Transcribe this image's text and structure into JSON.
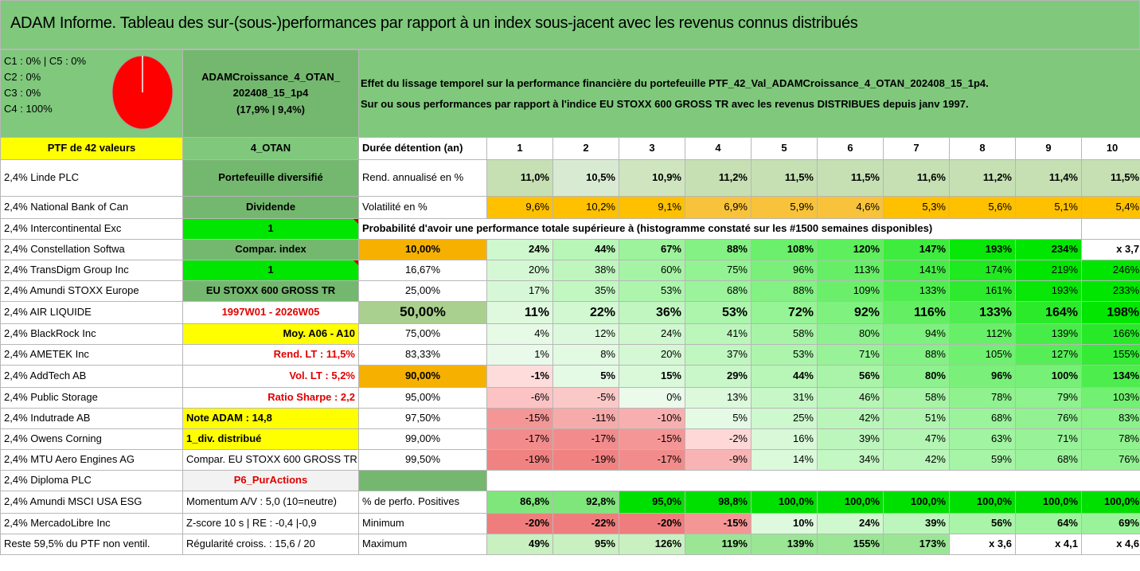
{
  "title": "ADAM Informe. Tableau des sur-(sous-)performances par rapport à un index sous-jacent avec les revenus connus distribués",
  "class_info": [
    "C1 : 0% | C5 : 0%",
    "C2 : 0%",
    "C3 : 0%",
    "C4 : 100%"
  ],
  "fund_box": {
    "line1": "ADAMCroissance_4_OTAN_",
    "line2": "202408_15_1p4",
    "line3": "(17,9% | 9,4%)"
  },
  "effect": {
    "line1": "Effet du lissage temporel sur la performance financière du portefeuille PTF_42_Val_ADAMCroissance_4_OTAN_202408_15_1p4.",
    "line2": "Sur ou sous performances par rapport à l'indice EU STOXX 600 GROSS TR avec les revenus DISTRIBUES depuis janv 1997."
  },
  "ptf_label": "PTF de 42 valeurs",
  "otan_label": "4_OTAN",
  "duration_label": "Durée détention (an)",
  "years": [
    "1",
    "2",
    "3",
    "4",
    "5",
    "6",
    "7",
    "8",
    "9",
    "10"
  ],
  "holdings": [
    "2,4% Linde PLC",
    "2,4% National Bank of Can",
    "2,4% Intercontinental Exc",
    "2,4% Constellation Softwa",
    "2,4% TransDigm Group Inc",
    "2,4% Amundi STOXX Europe",
    "2,4% AIR LIQUIDE",
    "2,4% BlackRock Inc",
    "2,4% AMETEK Inc",
    "2,4% AddTech AB",
    "2,4% Public Storage",
    "2,4% Indutrade AB",
    "2,4% Owens Corning",
    "2,4% MTU Aero Engines AG",
    "2,4% Diploma PLC",
    "2,4% Amundi MSCI USA ESG",
    "2,4% MercadoLibre Inc",
    "Reste 59,5% du PTF non ventil."
  ],
  "col2": [
    "Portefeuille diversifié",
    "Dividende",
    "1",
    "Compar. index",
    "1",
    "EU STOXX 600 GROSS TR",
    "1997W01 - 2026W05",
    "Moy. A06 - A10",
    "Rend. LT : 11,5%",
    "Vol. LT : 5,2%",
    "Ratio Sharpe : 2,2",
    "Note ADAM : 14,8",
    "1_div. distribué",
    "Compar. EU STOXX 600 GROSS TR",
    "P6_PurActions",
    "Momentum A/V : 5,0 (10=neutre)",
    "Z-score 10 s | RE : -0,4 |-0,9",
    "Régularité croiss. : 15,6 / 20"
  ],
  "rend": {
    "label": "Rend. annualisé en %",
    "values": [
      "11,0%",
      "10,5%",
      "10,9%",
      "11,2%",
      "11,5%",
      "11,5%",
      "11,6%",
      "11,2%",
      "11,4%",
      "11,5%"
    ]
  },
  "vol": {
    "label": "Volatilité en %",
    "values": [
      "9,6%",
      "10,2%",
      "9,1%",
      "6,9%",
      "5,9%",
      "4,6%",
      "5,3%",
      "5,6%",
      "5,1%",
      "5,4%"
    ]
  },
  "prob_title": "Probabilité d'avoir une performance totale supérieure à (histogramme constaté sur les #1500 semaines disponibles)",
  "prob_rows": [
    {
      "p": "10,00%",
      "v": [
        "24%",
        "44%",
        "67%",
        "88%",
        "108%",
        "120%",
        "147%",
        "193%",
        "234%",
        "x 3,7"
      ]
    },
    {
      "p": "16,67%",
      "v": [
        "20%",
        "38%",
        "60%",
        "75%",
        "96%",
        "113%",
        "141%",
        "174%",
        "219%",
        "246%"
      ]
    },
    {
      "p": "25,00%",
      "v": [
        "17%",
        "35%",
        "53%",
        "68%",
        "88%",
        "109%",
        "133%",
        "161%",
        "193%",
        "233%"
      ]
    },
    {
      "p": "50,00%",
      "v": [
        "11%",
        "22%",
        "36%",
        "53%",
        "72%",
        "92%",
        "116%",
        "133%",
        "164%",
        "198%"
      ]
    },
    {
      "p": "75,00%",
      "v": [
        "4%",
        "12%",
        "24%",
        "41%",
        "58%",
        "80%",
        "94%",
        "112%",
        "139%",
        "166%"
      ]
    },
    {
      "p": "83,33%",
      "v": [
        "1%",
        "8%",
        "20%",
        "37%",
        "53%",
        "71%",
        "88%",
        "105%",
        "127%",
        "155%"
      ]
    },
    {
      "p": "90,00%",
      "v": [
        "-1%",
        "5%",
        "15%",
        "29%",
        "44%",
        "56%",
        "80%",
        "96%",
        "100%",
        "134%"
      ]
    },
    {
      "p": "95,00%",
      "v": [
        "-6%",
        "-5%",
        "0%",
        "13%",
        "31%",
        "46%",
        "58%",
        "78%",
        "79%",
        "103%"
      ]
    },
    {
      "p": "97,50%",
      "v": [
        "-15%",
        "-11%",
        "-10%",
        "5%",
        "25%",
        "42%",
        "51%",
        "68%",
        "76%",
        "83%"
      ]
    },
    {
      "p": "99,00%",
      "v": [
        "-17%",
        "-17%",
        "-15%",
        "-2%",
        "16%",
        "39%",
        "47%",
        "63%",
        "71%",
        "78%"
      ]
    },
    {
      "p": "99,50%",
      "v": [
        "-19%",
        "-19%",
        "-17%",
        "-9%",
        "14%",
        "34%",
        "42%",
        "59%",
        "68%",
        "76%"
      ]
    }
  ],
  "pos": {
    "label": "% de perfo. Positives",
    "values": [
      "86,8%",
      "92,8%",
      "95,0%",
      "98,8%",
      "100,0%",
      "100,0%",
      "100,0%",
      "100,0%",
      "100,0%",
      "100,0%"
    ]
  },
  "min": {
    "label": "Minimum",
    "values": [
      "-20%",
      "-22%",
      "-20%",
      "-15%",
      "10%",
      "24%",
      "39%",
      "56%",
      "64%",
      "69%"
    ]
  },
  "max": {
    "label": "Maximum",
    "values": [
      "49%",
      "95%",
      "126%",
      "119%",
      "139%",
      "155%",
      "173%",
      "x 3,6",
      "x 4,1",
      "x 4,6"
    ]
  },
  "pie": {
    "slice_color": "#ff0000",
    "value": 100
  }
}
